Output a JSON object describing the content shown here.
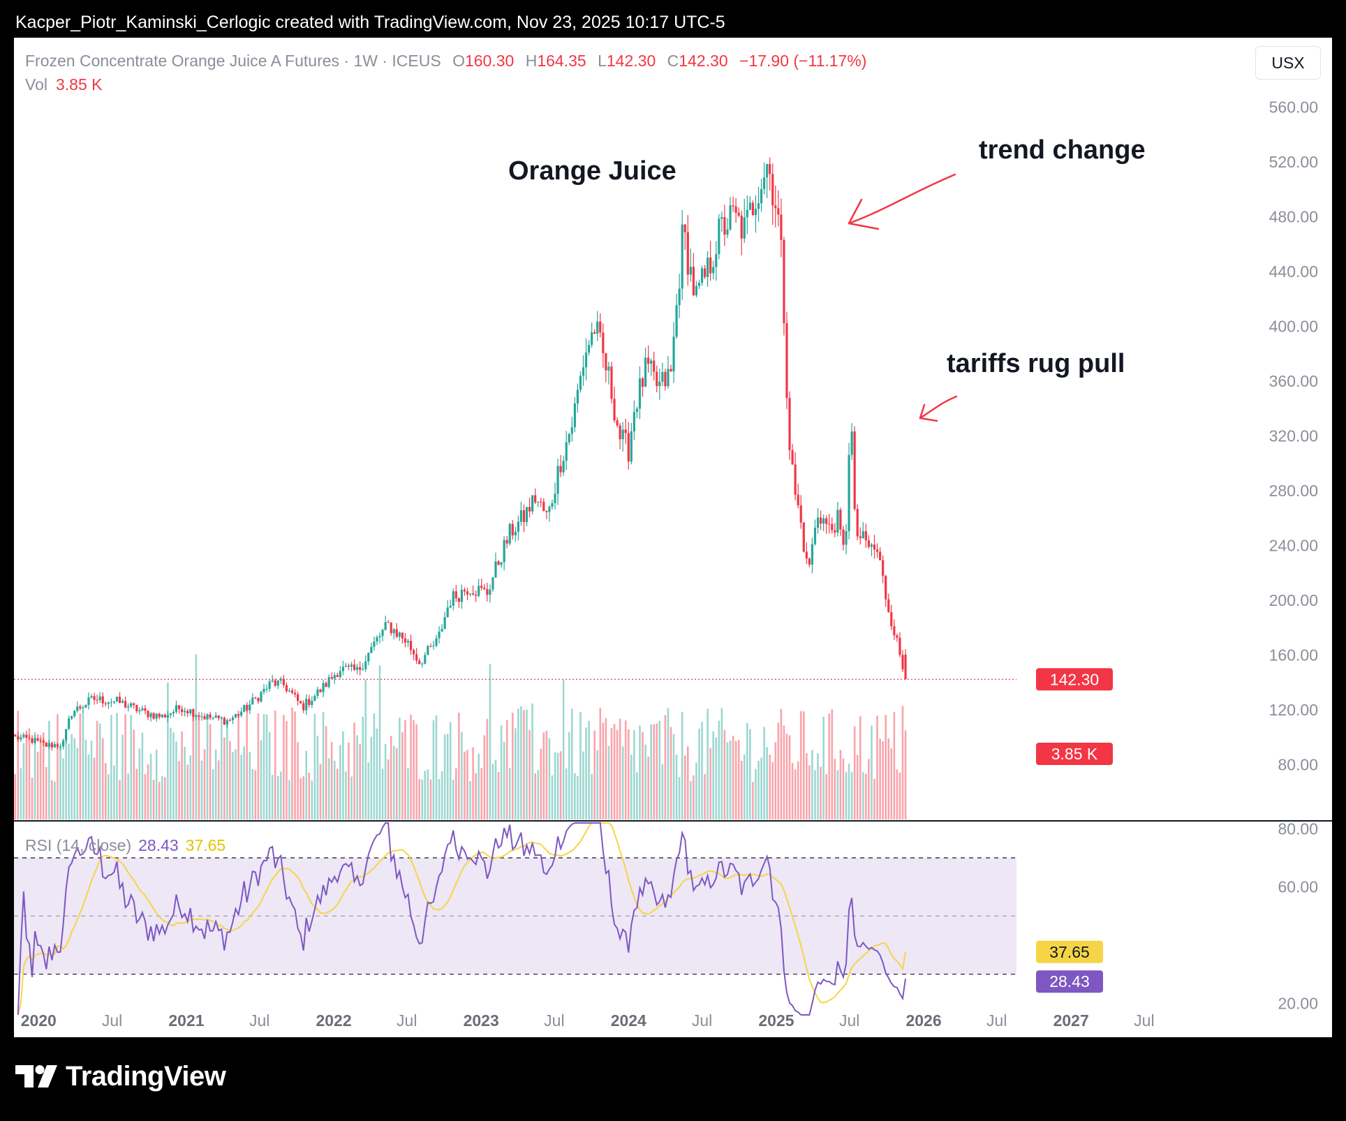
{
  "caption": "Kacper_Piotr_Kaminski_Cerlogic created with TradingView.com, Nov 23, 2025 10:17 UTC-5",
  "brand": {
    "name": "TradingView",
    "logo_icon": "tradingview-logo-icon"
  },
  "legend": {
    "symbol": "Frozen Concentrate Orange Juice A Futures · 1W · ICEUS",
    "open_label": "O",
    "open": "160.30",
    "high_label": "H",
    "high": "164.35",
    "low_label": "L",
    "low": "142.30",
    "close_label": "C",
    "close": "142.30",
    "change": "−17.90 (−11.17%)",
    "vol_label": "Vol",
    "vol_value": "3.85 K"
  },
  "currency_button": "USX",
  "rsi_legend": {
    "label": "RSI (14, close)",
    "rsi_value": "28.43",
    "ma_value": "37.65"
  },
  "annotations": {
    "title": "Orange Juice",
    "trend": "trend change",
    "tariffs": "tariffs rug pull"
  },
  "colors": {
    "up": "#26a69a",
    "down": "#f23645",
    "rsi_line": "#7e57c2",
    "rsi_ma": "#f5d547",
    "rsi_band": "#ede7f6",
    "price_line": "#f23645",
    "annotation_arrow": "#f23645"
  },
  "chart_data": [
    {
      "type": "candlestick",
      "title": "Frozen Concentrate Orange Juice A Futures · 1W · ICEUS",
      "interval": "1W",
      "currency": "USX",
      "x_start": "2019-11-04",
      "x_end": "2025-11-17",
      "x_range": [
        "2019-11-01",
        "2027-11-01"
      ],
      "ylim": [
        40,
        570
      ],
      "y_ticks": [
        "560.00",
        "520.00",
        "480.00",
        "440.00",
        "400.00",
        "360.00",
        "320.00",
        "280.00",
        "240.00",
        "200.00",
        "160.00",
        "120.00",
        "80.00"
      ],
      "x_ticks": [
        {
          "date": "2020-01-01",
          "label": "2020",
          "major": true
        },
        {
          "date": "2020-07-01",
          "label": "Jul",
          "major": false
        },
        {
          "date": "2021-01-01",
          "label": "2021",
          "major": true
        },
        {
          "date": "2021-07-01",
          "label": "Jul",
          "major": false
        },
        {
          "date": "2022-01-01",
          "label": "2022",
          "major": true
        },
        {
          "date": "2022-07-01",
          "label": "Jul",
          "major": false
        },
        {
          "date": "2023-01-01",
          "label": "2023",
          "major": true
        },
        {
          "date": "2023-07-01",
          "label": "Jul",
          "major": false
        },
        {
          "date": "2024-01-01",
          "label": "2024",
          "major": true
        },
        {
          "date": "2024-07-01",
          "label": "Jul",
          "major": false
        },
        {
          "date": "2025-01-01",
          "label": "2025",
          "major": true
        },
        {
          "date": "2025-07-01",
          "label": "Jul",
          "major": false
        },
        {
          "date": "2026-01-01",
          "label": "2026",
          "major": true
        },
        {
          "date": "2026-07-01",
          "label": "Jul",
          "major": false
        },
        {
          "date": "2027-01-01",
          "label": "2027",
          "major": true
        },
        {
          "date": "2027-07-01",
          "label": "Jul",
          "major": false
        }
      ],
      "close_anchors": [
        [
          "2019-11-04",
          100
        ],
        [
          "2019-12-15",
          98
        ],
        [
          "2020-01-20",
          94
        ],
        [
          "2020-03-01",
          95
        ],
        [
          "2020-03-22",
          118
        ],
        [
          "2020-05-15",
          128
        ],
        [
          "2020-07-15",
          126
        ],
        [
          "2020-09-20",
          118
        ],
        [
          "2020-11-01",
          115
        ],
        [
          "2020-12-20",
          122
        ],
        [
          "2021-02-15",
          115
        ],
        [
          "2021-04-15",
          112
        ],
        [
          "2021-06-01",
          122
        ],
        [
          "2021-08-01",
          140
        ],
        [
          "2021-09-01",
          138
        ],
        [
          "2021-10-15",
          122
        ],
        [
          "2021-12-01",
          135
        ],
        [
          "2022-01-15",
          150
        ],
        [
          "2022-03-01",
          148
        ],
        [
          "2022-04-15",
          170
        ],
        [
          "2022-05-15",
          182
        ],
        [
          "2022-07-01",
          170
        ],
        [
          "2022-08-01",
          155
        ],
        [
          "2022-09-15",
          170
        ],
        [
          "2022-10-15",
          200
        ],
        [
          "2022-12-01",
          210
        ],
        [
          "2023-01-15",
          205
        ],
        [
          "2023-02-15",
          230
        ],
        [
          "2023-03-15",
          250
        ],
        [
          "2023-04-15",
          260
        ],
        [
          "2023-05-15",
          275
        ],
        [
          "2023-06-15",
          260
        ],
        [
          "2023-07-15",
          300
        ],
        [
          "2023-08-15",
          330
        ],
        [
          "2023-09-15",
          380
        ],
        [
          "2023-10-10",
          400
        ],
        [
          "2023-11-15",
          360
        ],
        [
          "2023-12-10",
          320
        ],
        [
          "2024-01-01",
          310
        ],
        [
          "2024-01-15",
          340
        ],
        [
          "2024-02-15",
          370
        ],
        [
          "2024-03-15",
          355
        ],
        [
          "2024-04-15",
          365
        ],
        [
          "2024-05-15",
          470
        ],
        [
          "2024-06-15",
          420
        ],
        [
          "2024-07-15",
          440
        ],
        [
          "2024-08-15",
          470
        ],
        [
          "2024-09-15",
          480
        ],
        [
          "2024-10-15",
          470
        ],
        [
          "2024-11-15",
          500
        ],
        [
          "2024-12-10",
          520
        ],
        [
          "2024-12-31",
          490
        ],
        [
          "2025-01-10",
          470
        ],
        [
          "2025-01-20",
          410
        ],
        [
          "2025-02-01",
          320
        ],
        [
          "2025-02-15",
          280
        ],
        [
          "2025-03-01",
          260
        ],
        [
          "2025-03-20",
          220
        ],
        [
          "2025-04-15",
          265
        ],
        [
          "2025-05-15",
          250
        ],
        [
          "2025-06-01",
          260
        ],
        [
          "2025-06-20",
          230
        ],
        [
          "2025-07-01",
          320
        ],
        [
          "2025-07-08",
          320
        ],
        [
          "2025-07-15",
          250
        ],
        [
          "2025-08-15",
          240
        ],
        [
          "2025-09-10",
          235
        ],
        [
          "2025-10-01",
          200
        ],
        [
          "2025-10-20",
          178
        ],
        [
          "2025-11-17",
          142.3
        ]
      ],
      "volume_ylim": [
        0,
        180
      ],
      "last_volume": "3.85 K",
      "last_close": "142.30"
    },
    {
      "type": "line",
      "name": "RSI (14, close)",
      "ylim": [
        16,
        82
      ],
      "y_ticks": [
        "80.00",
        "60.00",
        "20.00"
      ],
      "band": [
        30,
        70
      ],
      "mid": 50,
      "rsi_last": "28.43",
      "ma_last": "37.65",
      "series": [
        {
          "name": "28.43",
          "color": "#7e57c2"
        },
        {
          "name": "37.65",
          "color": "#f5d547"
        }
      ]
    }
  ]
}
